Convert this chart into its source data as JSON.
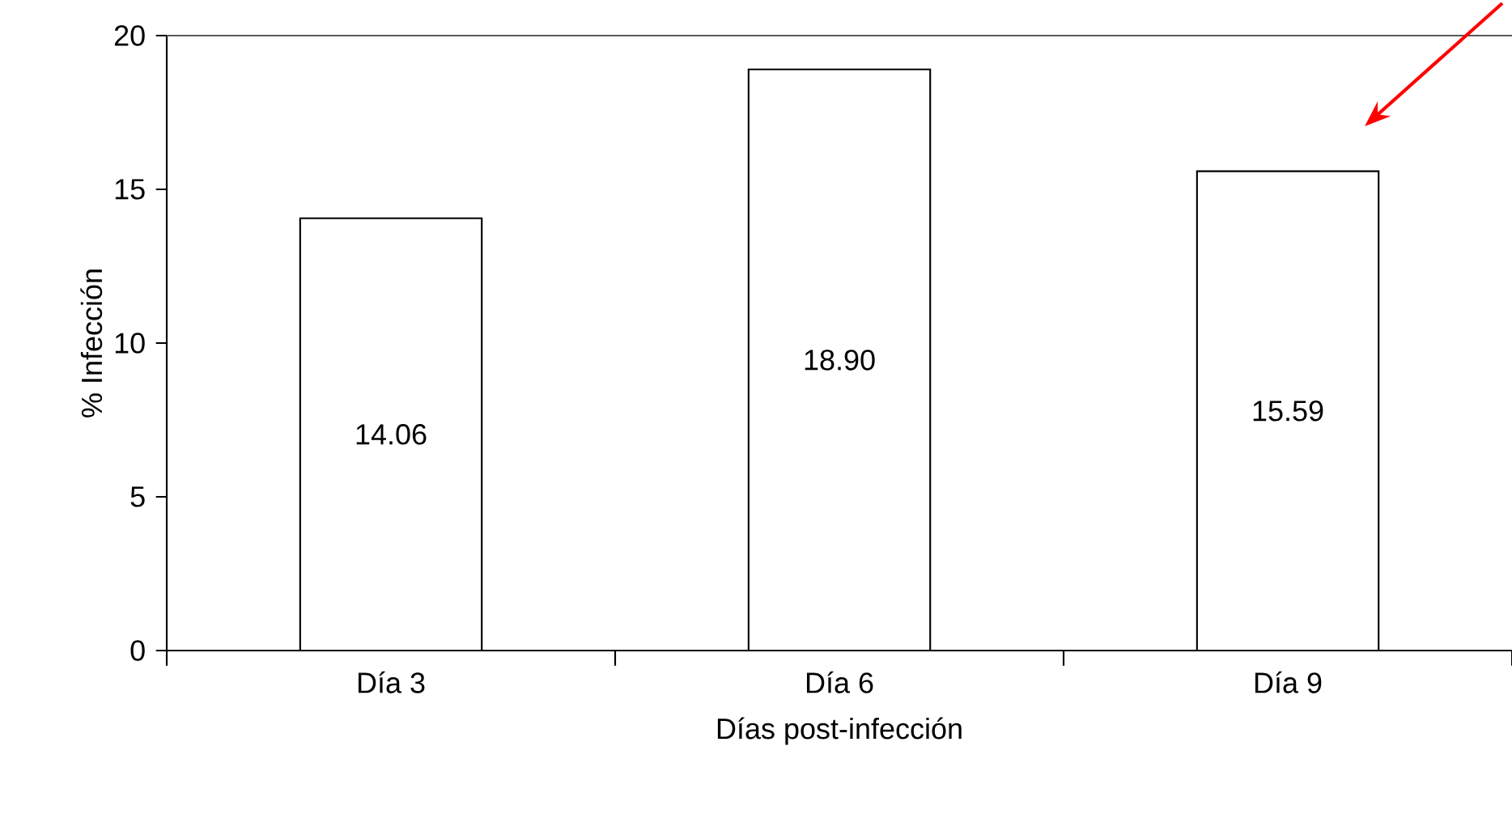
{
  "chart_data": {
    "type": "bar",
    "categories": [
      "Día 3",
      "Día 6",
      "Día 9"
    ],
    "values": [
      14.06,
      18.9,
      15.59
    ],
    "value_labels": [
      "14.06",
      "18.90",
      "15.59"
    ],
    "color": "#ffffff",
    "xlabel": "Días post-infección",
    "ylabel": "% Infección",
    "ylim": [
      0,
      20
    ],
    "yticks": [
      0,
      5,
      10,
      15,
      20
    ],
    "grid": false
  }
}
